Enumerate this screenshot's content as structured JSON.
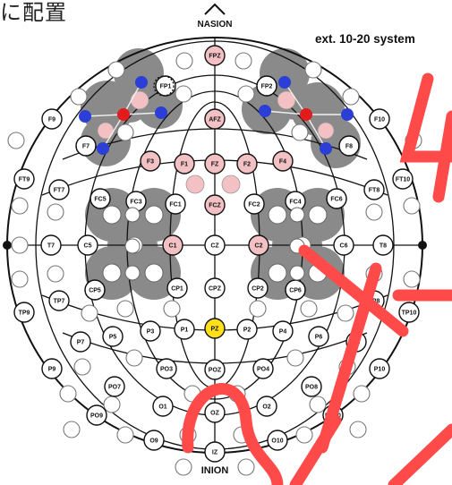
{
  "heading": "に配置",
  "system_label": "ext. 10-20 system",
  "nasion_label": "NASION",
  "inion_label": "INION",
  "electrodes": {
    "fpz": "FPZ",
    "fp1": "FP1",
    "fp2": "FP2",
    "afz": "AFZ",
    "f9": "F9",
    "f10": "F10",
    "f7": "F7",
    "f8": "F8",
    "f3": "F3",
    "f1": "F1",
    "fz": "FZ",
    "f2": "F2",
    "f4": "F4",
    "ft9": "FT9",
    "ft10": "FT10",
    "ft7": "FT7",
    "ft8": "FT8",
    "fc5": "FC5",
    "fc3": "FC3",
    "fc1": "FC1",
    "fcz": "FCZ",
    "fc2": "FC2",
    "fc4": "FC4",
    "fc6": "FC6",
    "t7": "T7",
    "t8": "T8",
    "c5": "C5",
    "c1": "C1",
    "cz": "CZ",
    "c2": "C2",
    "c6": "C6",
    "tp9": "TP9",
    "tp10": "TP10",
    "tp7": "TP7",
    "tp8": "TP8",
    "cp5": "CP5",
    "cp1": "CP1",
    "cpz": "CPZ",
    "cp2": "CP2",
    "cp6": "CP6",
    "p9": "P9",
    "p10": "P10",
    "p7": "P7",
    "p8": "P8",
    "p5": "P5",
    "p3": "P3",
    "p1": "P1",
    "pz": "PZ",
    "p2": "P2",
    "p4": "P4",
    "p6": "P6",
    "po7": "PO7",
    "po3": "PO3",
    "poz": "POZ",
    "po4": "PO4",
    "po8": "PO8",
    "po9": "PO9",
    "po10": "PO10",
    "o1": "O1",
    "oz": "OZ",
    "o2": "O2",
    "o9": "O9",
    "o10": "O10",
    "iz": "IZ"
  },
  "colors": {
    "electrode_fill": "#ffffff",
    "highlight_pink": "#f3c1c4",
    "reference_yellow": "#ffe01a",
    "cluster_gray": "#8a8a8a",
    "blue_dot": "#2c3ed6",
    "red_dot": "#e21b1b",
    "annotation_red": "#ff4a4a",
    "line": "#111111"
  }
}
